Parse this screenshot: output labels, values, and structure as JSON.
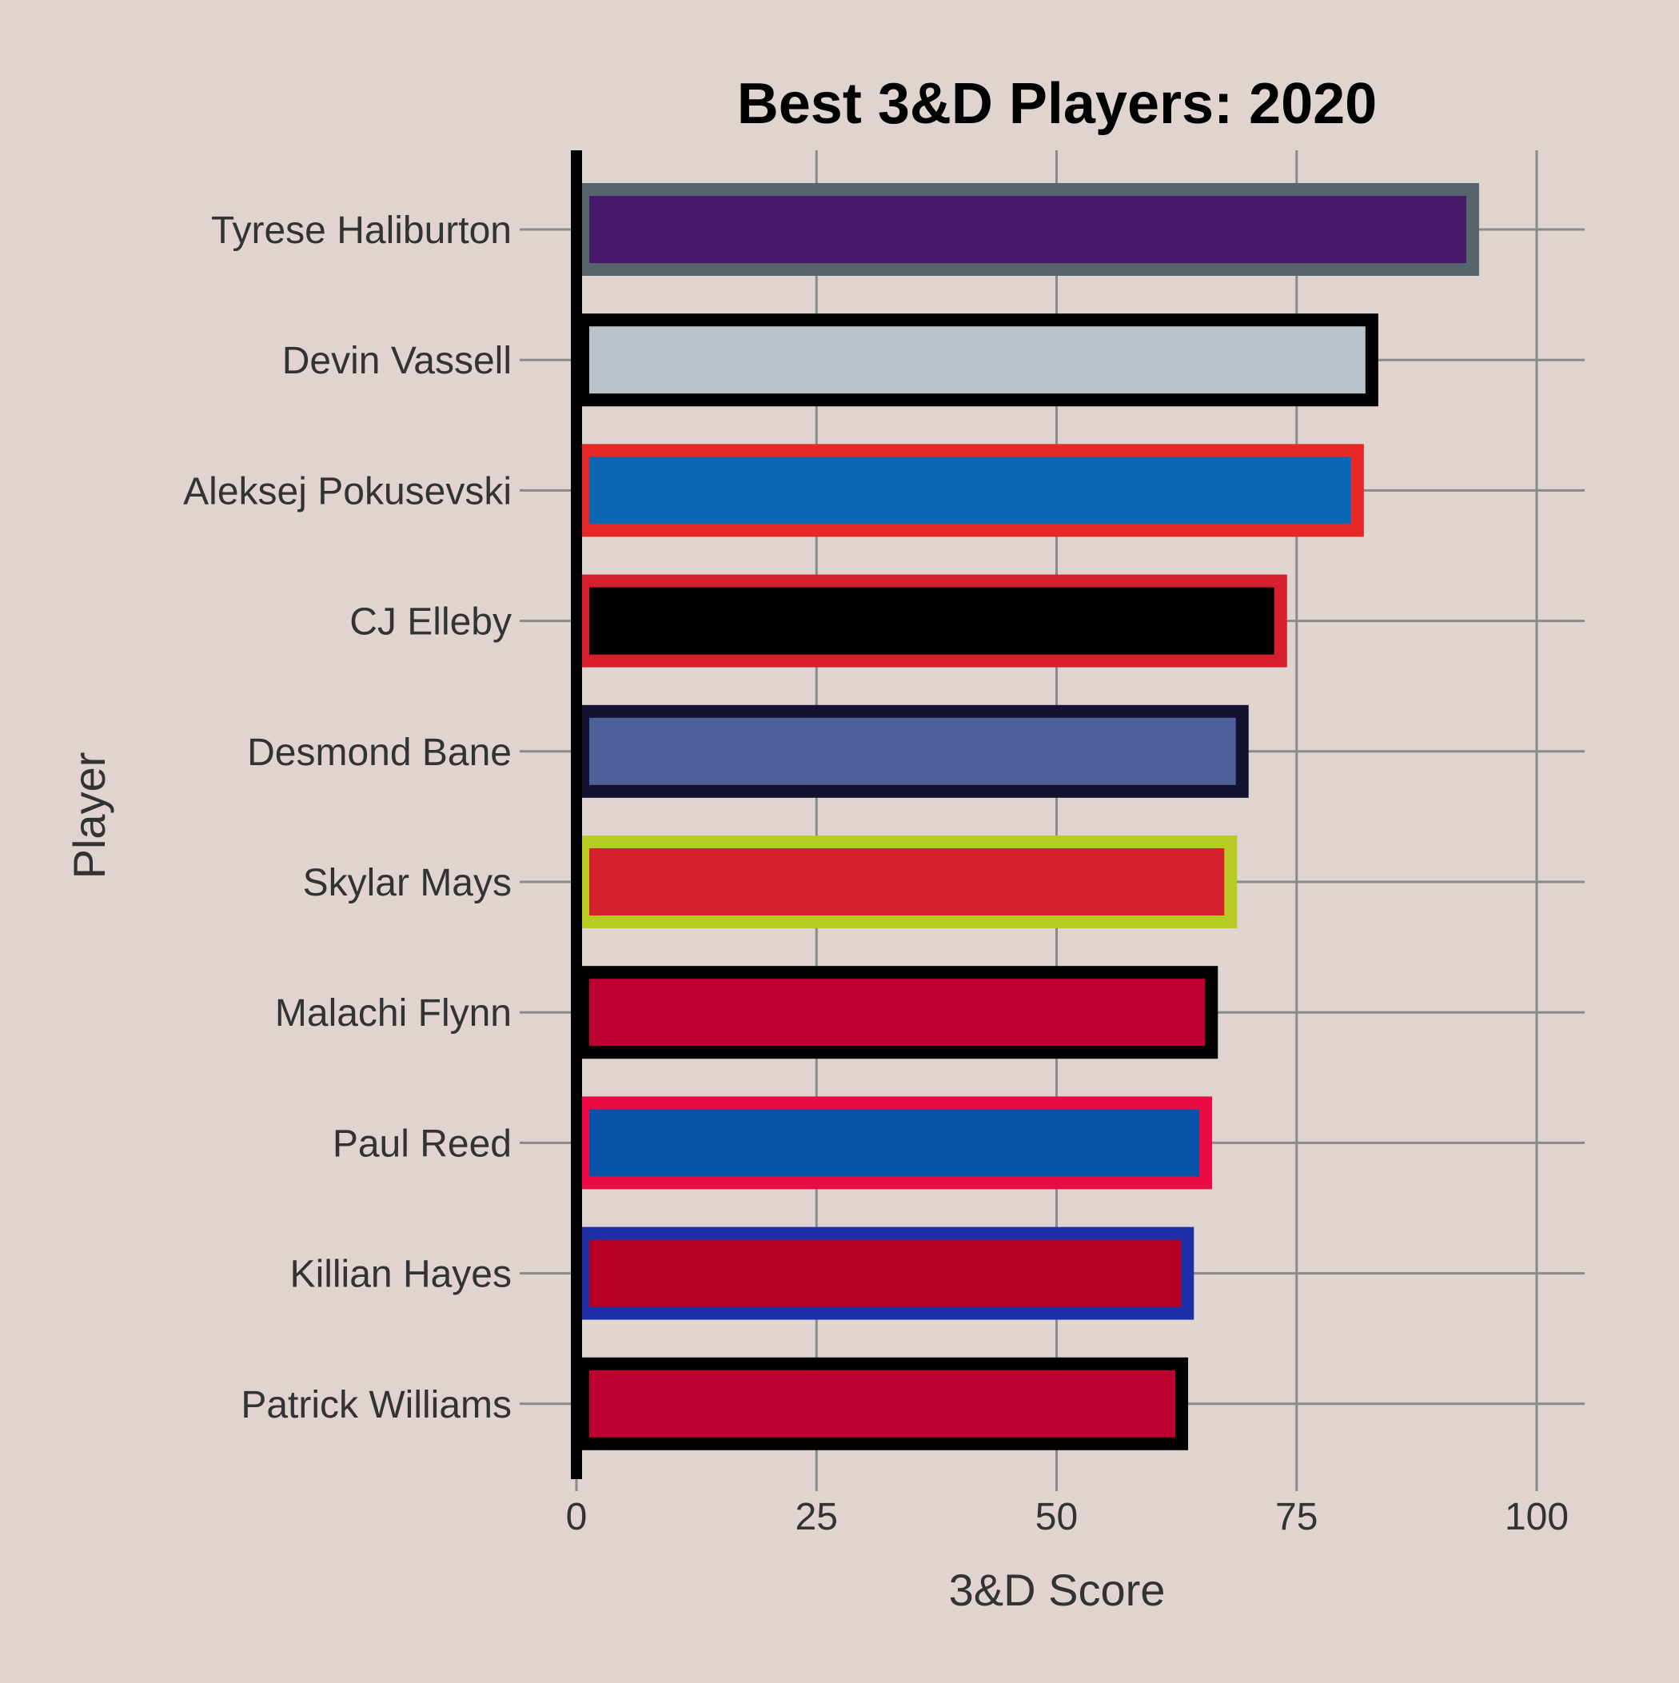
{
  "chart_data": {
    "type": "bar",
    "orientation": "horizontal",
    "title": "Best 3&D Players: 2020",
    "xlabel": "3&D Score",
    "ylabel": "Player",
    "xlim": [
      0,
      105
    ],
    "xticks": [
      0,
      25,
      50,
      75,
      100
    ],
    "grid": true,
    "legend": "none",
    "background_color": "#dfd4d0",
    "gridline_color": "#8a8a8a",
    "categories": [
      "Tyrese Haliburton",
      "Devin Vassell",
      "Aleksej Pokusevski",
      "CJ Elleby",
      "Desmond Bane",
      "Skylar Mays",
      "Malachi Flynn",
      "Paul Reed",
      "Killian Hayes",
      "Patrick Williams"
    ],
    "values": [
      94,
      83.5,
      82,
      74,
      70,
      68.8,
      66.8,
      66.2,
      64.3,
      63.7
    ],
    "fill_colors": [
      "#461a68",
      "#bac3c9",
      "#0c66b4",
      "#000000",
      "#4d6099",
      "#d5202d",
      "#bf0030",
      "#0853a8",
      "#b80024",
      "#be0030"
    ],
    "outline_colors": [
      "#56646e",
      "#000000",
      "#e52725",
      "#d5202d",
      "#141231",
      "#b6cc25",
      "#000000",
      "#ec0a45",
      "#1c2fa6",
      "#000000"
    ]
  }
}
